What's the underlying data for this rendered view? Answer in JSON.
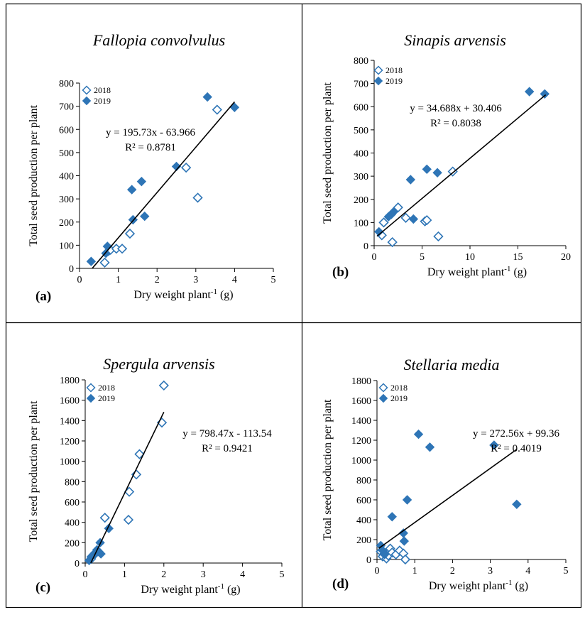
{
  "chart_data": [
    {
      "type": "scatter",
      "panel_label": "(a)",
      "title": "Fallopia convolvulus",
      "xlabel": "Dry weight plant",
      "xlabel_sup": "-1",
      "xlabel_unit": " (g)",
      "ylabel": "Total seed production per plant",
      "xlim": [
        0,
        5
      ],
      "ylim": [
        0,
        800
      ],
      "xticks": [
        0,
        1,
        2,
        3,
        4,
        5
      ],
      "yticks": [
        0,
        100,
        200,
        300,
        400,
        500,
        600,
        700,
        800
      ],
      "grid": false,
      "legend_position": "top-left",
      "series": [
        {
          "name": "2018",
          "marker": "hollow-diamond",
          "color": "#2E75B6",
          "x": [
            0.65,
            0.75,
            0.8,
            0.95,
            1.1,
            1.3,
            2.75,
            3.05,
            3.55
          ],
          "y": [
            25,
            75,
            80,
            85,
            85,
            150,
            435,
            305,
            685
          ]
        },
        {
          "name": "2019",
          "marker": "filled-diamond",
          "color": "#2E75B6",
          "x": [
            0.3,
            0.68,
            0.72,
            1.35,
            1.38,
            1.6,
            1.68,
            2.5,
            3.3,
            4.0
          ],
          "y": [
            30,
            65,
            95,
            340,
            210,
            375,
            225,
            440,
            740,
            695
          ]
        }
      ],
      "trendline": {
        "slope": 195.73,
        "intercept": -63.966,
        "x_range": [
          0.33,
          4.0
        ]
      },
      "equation": "y = 195.73x - 63.966",
      "r2": "R² = 0.8781"
    },
    {
      "type": "scatter",
      "panel_label": "(b)",
      "title": "Sinapis arvensis",
      "xlabel": "Dry weight plant",
      "xlabel_sup": "-1",
      "xlabel_unit": " (g)",
      "ylabel": "Total seed production per plant",
      "xlim": [
        0,
        20
      ],
      "ylim": [
        0,
        800
      ],
      "xticks": [
        0,
        5,
        10,
        15,
        20
      ],
      "yticks": [
        0,
        100,
        200,
        300,
        400,
        500,
        600,
        700,
        800
      ],
      "grid": false,
      "legend_position": "top-left",
      "series": [
        {
          "name": "2018",
          "marker": "hollow-diamond",
          "color": "#2E75B6",
          "x": [
            0.8,
            1.0,
            1.9,
            2.5,
            3.3,
            5.3,
            5.5,
            6.7,
            8.2
          ],
          "y": [
            45,
            100,
            15,
            165,
            120,
            105,
            110,
            40,
            320
          ]
        },
        {
          "name": "2019",
          "marker": "filled-diamond",
          "color": "#2E75B6",
          "x": [
            0.5,
            1.5,
            1.8,
            2.0,
            3.8,
            4.1,
            5.5,
            6.6,
            16.2,
            17.8
          ],
          "y": [
            60,
            125,
            135,
            145,
            285,
            115,
            330,
            315,
            665,
            655
          ]
        }
      ],
      "trendline": {
        "slope": 34.688,
        "intercept": 30.406,
        "x_range": [
          0.3,
          17.9
        ]
      },
      "equation": "y = 34.688x + 30.406",
      "r2": "R² = 0.8038"
    },
    {
      "type": "scatter",
      "panel_label": "(c)",
      "title": "Spergula arvensis",
      "xlabel": "Dry weight plant",
      "xlabel_sup": "-1",
      "xlabel_unit": " (g)",
      "ylabel": "Total seed production per plant",
      "xlim": [
        0,
        5
      ],
      "ylim": [
        0,
        1800
      ],
      "xticks": [
        0,
        1,
        2,
        3,
        4,
        5
      ],
      "yticks": [
        0,
        200,
        400,
        600,
        800,
        1000,
        1200,
        1400,
        1600,
        1800
      ],
      "grid": false,
      "legend_position": "top-left",
      "series": [
        {
          "name": "2018",
          "marker": "hollow-diamond",
          "color": "#2E75B6",
          "x": [
            0.15,
            0.25,
            0.5,
            1.1,
            1.12,
            1.3,
            1.38,
            1.95,
            2.0
          ],
          "y": [
            40,
            90,
            445,
            425,
            700,
            870,
            1070,
            1380,
            1745
          ]
        },
        {
          "name": "2019",
          "marker": "filled-diamond",
          "color": "#2E75B6",
          "x": [
            0.1,
            0.15,
            0.2,
            0.25,
            0.3,
            0.35,
            0.38,
            0.4,
            0.6
          ],
          "y": [
            25,
            60,
            80,
            100,
            130,
            110,
            200,
            90,
            340
          ]
        }
      ],
      "trendline": {
        "slope": 798.47,
        "intercept": -113.54,
        "x_range": [
          0.142,
          2.0
        ]
      },
      "equation": "y = 798.47x - 113.54",
      "r2": "R² = 0.9421"
    },
    {
      "type": "scatter",
      "panel_label": "(d)",
      "title": "Stellaria media",
      "xlabel": "Dry weight plant",
      "xlabel_sup": "-1",
      "xlabel_unit": " (g)",
      "ylabel": "Total seed production per plant",
      "xlim": [
        0,
        5
      ],
      "ylim": [
        0,
        1800
      ],
      "xticks": [
        0,
        1,
        2,
        3,
        4,
        5
      ],
      "yticks": [
        0,
        200,
        400,
        600,
        800,
        1000,
        1200,
        1400,
        1600,
        1800
      ],
      "grid": false,
      "legend_position": "top-left",
      "series": [
        {
          "name": "2018",
          "marker": "hollow-diamond",
          "color": "#2E75B6",
          "x": [
            0.1,
            0.15,
            0.2,
            0.25,
            0.3,
            0.35,
            0.4,
            0.5,
            0.6,
            0.7,
            0.75
          ],
          "y": [
            80,
            30,
            60,
            10,
            40,
            110,
            70,
            50,
            90,
            60,
            0
          ]
        },
        {
          "name": "2019",
          "marker": "filled-diamond",
          "color": "#2E75B6",
          "x": [
            0.1,
            0.15,
            0.2,
            0.4,
            0.7,
            0.72,
            0.8,
            1.1,
            1.4,
            3.1,
            3.7
          ],
          "y": [
            140,
            90,
            50,
            430,
            265,
            185,
            600,
            1260,
            1130,
            1150,
            555
          ]
        }
      ],
      "trendline": {
        "slope": 272.56,
        "intercept": 99.36,
        "x_range": [
          0.05,
          3.7
        ]
      },
      "equation": "y = 272.56x + 99.36",
      "r2": "R² = 0.4019"
    }
  ]
}
